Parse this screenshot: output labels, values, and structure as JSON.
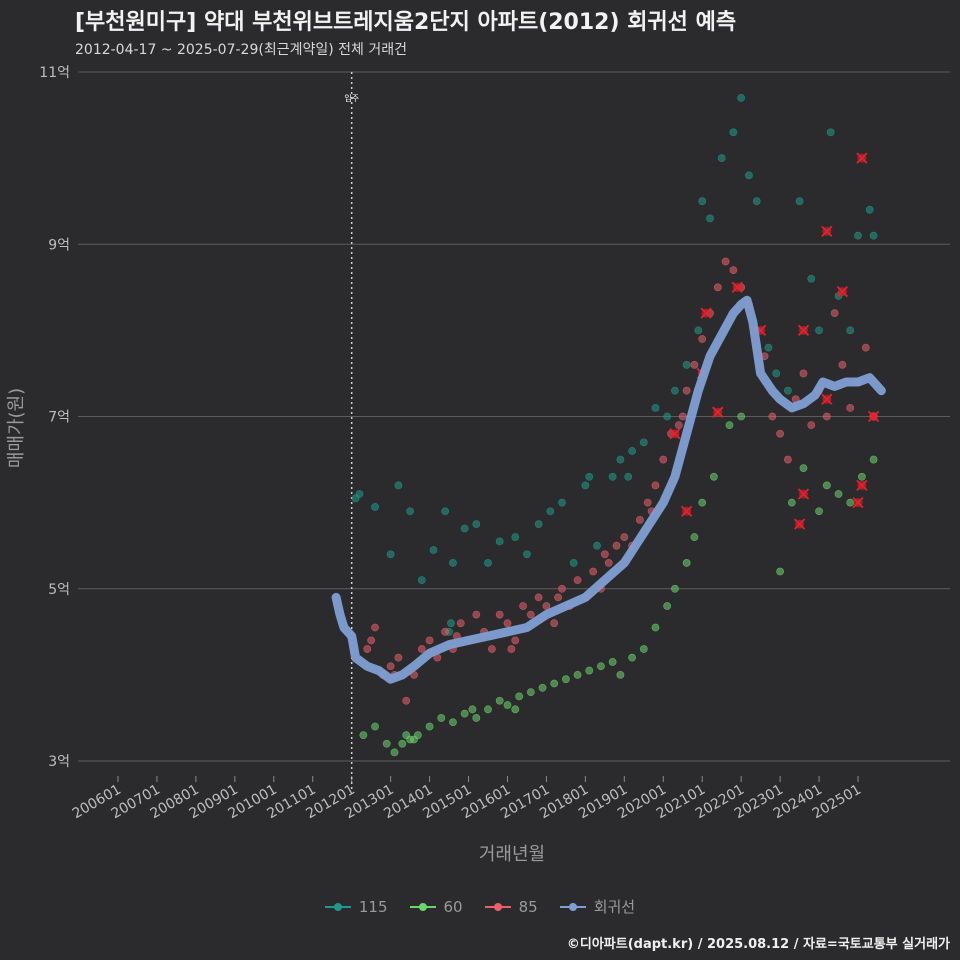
{
  "header": {
    "title": "[부천원미구] 약대 부천위브트레지움2단지 아파트(2012) 회귀선 예측",
    "subtitle": "2012-04-17 ~ 2025-07-29(최근계약일) 전체 거래건"
  },
  "caption": "©디아파트(dapt.kr) / 2025.08.12 / 자료=국토교통부 실거래가",
  "colors": {
    "background": "#2b2b2d",
    "grid": "#5c5c5c",
    "s115": "#1f9a8a",
    "s60": "#6bd46b",
    "s85": "#e8606a",
    "regression": "#7f9fd4",
    "highlight": "#e8202a"
  },
  "chart_data": {
    "type": "scatter",
    "title": "[부천원미구] 약대 부천위브트레지움2단지 아파트(2012) 회귀선 예측",
    "xlabel": "거래년월",
    "ylabel": "매매가(원)",
    "xlim": [
      2005.6,
      2026.2
    ],
    "ylim": [
      2.7,
      11.0
    ],
    "x_ticks": [
      2006,
      2007,
      2008,
      2009,
      2010,
      2011,
      2012,
      2013,
      2014,
      2015,
      2016,
      2017,
      2018,
      2019,
      2020,
      2021,
      2022,
      2023,
      2024,
      2025
    ],
    "x_tick_labels": [
      "200601",
      "200701",
      "200801",
      "200901",
      "201001",
      "201101",
      "201201",
      "201301",
      "201401",
      "201501",
      "201601",
      "201701",
      "201801",
      "201901",
      "202001",
      "202101",
      "202201",
      "202301",
      "202401",
      "202501"
    ],
    "y_ticks": [
      3,
      5,
      7,
      9,
      11
    ],
    "y_tick_labels": [
      "3억",
      "5억",
      "7억",
      "9억",
      "11억"
    ],
    "annotation": {
      "x": 2012.0,
      "label": "입주"
    },
    "legend": [
      {
        "key": "s115",
        "label": "115"
      },
      {
        "key": "s60",
        "label": "60"
      },
      {
        "key": "s85",
        "label": "85"
      },
      {
        "key": "regression",
        "label": "회귀선"
      }
    ],
    "series": [
      {
        "name": "115",
        "key": "s115",
        "points": [
          [
            2012.1,
            6.05
          ],
          [
            2012.2,
            6.1
          ],
          [
            2012.6,
            5.95
          ],
          [
            2013.0,
            5.4
          ],
          [
            2013.2,
            6.2
          ],
          [
            2013.5,
            5.9
          ],
          [
            2013.8,
            5.1
          ],
          [
            2014.1,
            5.45
          ],
          [
            2014.4,
            5.9
          ],
          [
            2014.6,
            5.3
          ],
          [
            2014.9,
            5.7
          ],
          [
            2015.2,
            5.75
          ],
          [
            2015.5,
            5.3
          ],
          [
            2015.8,
            5.55
          ],
          [
            2016.2,
            5.6
          ],
          [
            2016.5,
            5.4
          ],
          [
            2016.8,
            5.75
          ],
          [
            2017.1,
            5.9
          ],
          [
            2017.4,
            6.0
          ],
          [
            2017.7,
            5.3
          ],
          [
            2018.0,
            6.2
          ],
          [
            2018.3,
            5.5
          ],
          [
            2018.7,
            6.3
          ],
          [
            2018.9,
            6.5
          ],
          [
            2019.2,
            6.6
          ],
          [
            2019.5,
            6.7
          ],
          [
            2019.8,
            7.1
          ],
          [
            2020.1,
            7.0
          ],
          [
            2020.3,
            7.3
          ],
          [
            2020.6,
            7.6
          ],
          [
            2020.9,
            8.0
          ],
          [
            2021.0,
            9.5
          ],
          [
            2021.2,
            9.3
          ],
          [
            2021.5,
            10.0
          ],
          [
            2021.8,
            10.3
          ],
          [
            2022.0,
            10.7
          ],
          [
            2022.2,
            9.8
          ],
          [
            2022.4,
            9.5
          ],
          [
            2022.7,
            7.8
          ],
          [
            2022.9,
            7.5
          ],
          [
            2023.2,
            7.3
          ],
          [
            2023.5,
            9.5
          ],
          [
            2023.8,
            8.6
          ],
          [
            2024.0,
            8.0
          ],
          [
            2024.3,
            10.3
          ],
          [
            2024.5,
            8.4
          ],
          [
            2024.8,
            8.0
          ],
          [
            2025.0,
            9.1
          ],
          [
            2025.3,
            9.4
          ],
          [
            2025.4,
            9.1
          ],
          [
            2014.5,
            4.5
          ],
          [
            2014.55,
            4.6
          ],
          [
            2018.1,
            6.3
          ],
          [
            2019.1,
            6.3
          ]
        ]
      },
      {
        "name": "60",
        "key": "s60",
        "points": [
          [
            2012.3,
            3.3
          ],
          [
            2012.6,
            3.4
          ],
          [
            2012.9,
            3.2
          ],
          [
            2013.1,
            3.1
          ],
          [
            2013.3,
            3.2
          ],
          [
            2013.5,
            3.25
          ],
          [
            2013.7,
            3.3
          ],
          [
            2014.0,
            3.4
          ],
          [
            2014.3,
            3.5
          ],
          [
            2014.6,
            3.45
          ],
          [
            2014.9,
            3.55
          ],
          [
            2015.2,
            3.5
          ],
          [
            2015.5,
            3.6
          ],
          [
            2015.8,
            3.7
          ],
          [
            2016.0,
            3.65
          ],
          [
            2016.3,
            3.75
          ],
          [
            2016.6,
            3.8
          ],
          [
            2016.9,
            3.85
          ],
          [
            2017.2,
            3.9
          ],
          [
            2017.5,
            3.95
          ],
          [
            2017.8,
            4.0
          ],
          [
            2018.1,
            4.05
          ],
          [
            2018.4,
            4.1
          ],
          [
            2018.7,
            4.15
          ],
          [
            2018.9,
            4.0
          ],
          [
            2019.2,
            4.2
          ],
          [
            2019.5,
            4.3
          ],
          [
            2019.8,
            4.55
          ],
          [
            2020.1,
            4.8
          ],
          [
            2020.3,
            5.0
          ],
          [
            2020.6,
            5.3
          ],
          [
            2020.8,
            5.6
          ],
          [
            2021.0,
            6.0
          ],
          [
            2021.3,
            6.3
          ],
          [
            2021.7,
            6.9
          ],
          [
            2022.0,
            7.0
          ],
          [
            2023.0,
            5.2
          ],
          [
            2023.3,
            6.0
          ],
          [
            2023.6,
            6.4
          ],
          [
            2024.0,
            5.9
          ],
          [
            2024.2,
            6.2
          ],
          [
            2024.5,
            6.1
          ],
          [
            2024.8,
            6.0
          ],
          [
            2025.1,
            6.3
          ],
          [
            2025.4,
            6.5
          ],
          [
            2013.4,
            3.3
          ],
          [
            2013.6,
            3.25
          ],
          [
            2015.1,
            3.6
          ],
          [
            2016.2,
            3.6
          ]
        ]
      },
      {
        "name": "85",
        "key": "s85",
        "points": [
          [
            2012.4,
            4.3
          ],
          [
            2012.6,
            4.55
          ],
          [
            2012.8,
            4.0
          ],
          [
            2013.0,
            4.1
          ],
          [
            2013.2,
            4.2
          ],
          [
            2013.4,
            3.7
          ],
          [
            2013.6,
            4.0
          ],
          [
            2013.8,
            4.3
          ],
          [
            2014.0,
            4.4
          ],
          [
            2014.2,
            4.2
          ],
          [
            2014.4,
            4.5
          ],
          [
            2014.6,
            4.3
          ],
          [
            2014.8,
            4.6
          ],
          [
            2015.0,
            4.4
          ],
          [
            2015.2,
            4.7
          ],
          [
            2015.4,
            4.5
          ],
          [
            2015.6,
            4.3
          ],
          [
            2015.8,
            4.7
          ],
          [
            2016.0,
            4.6
          ],
          [
            2016.2,
            4.4
          ],
          [
            2016.4,
            4.8
          ],
          [
            2016.6,
            4.7
          ],
          [
            2016.8,
            4.9
          ],
          [
            2017.0,
            4.8
          ],
          [
            2017.2,
            4.6
          ],
          [
            2017.4,
            5.0
          ],
          [
            2017.6,
            4.8
          ],
          [
            2017.8,
            5.1
          ],
          [
            2018.0,
            4.9
          ],
          [
            2018.2,
            5.2
          ],
          [
            2018.4,
            5.0
          ],
          [
            2018.6,
            5.3
          ],
          [
            2018.8,
            5.5
          ],
          [
            2019.0,
            5.6
          ],
          [
            2019.2,
            5.5
          ],
          [
            2019.4,
            5.8
          ],
          [
            2019.6,
            6.0
          ],
          [
            2019.8,
            6.2
          ],
          [
            2020.0,
            6.5
          ],
          [
            2020.2,
            6.8
          ],
          [
            2020.4,
            6.9
          ],
          [
            2020.6,
            7.3
          ],
          [
            2020.8,
            7.6
          ],
          [
            2021.0,
            7.9
          ],
          [
            2021.2,
            8.2
          ],
          [
            2021.4,
            8.5
          ],
          [
            2021.6,
            8.8
          ],
          [
            2021.8,
            8.7
          ],
          [
            2022.0,
            8.5
          ],
          [
            2022.2,
            8.3
          ],
          [
            2022.4,
            8.0
          ],
          [
            2022.6,
            7.7
          ],
          [
            2022.8,
            7.0
          ],
          [
            2023.0,
            6.8
          ],
          [
            2023.2,
            6.5
          ],
          [
            2023.4,
            7.2
          ],
          [
            2023.6,
            7.5
          ],
          [
            2023.8,
            6.9
          ],
          [
            2024.0,
            7.3
          ],
          [
            2024.2,
            7.0
          ],
          [
            2024.4,
            8.2
          ],
          [
            2024.6,
            7.6
          ],
          [
            2024.8,
            7.1
          ],
          [
            2025.0,
            7.4
          ],
          [
            2025.2,
            7.8
          ],
          [
            2025.4,
            7.0
          ],
          [
            2012.5,
            4.4
          ],
          [
            2013.1,
            4.0
          ],
          [
            2014.7,
            4.45
          ],
          [
            2016.1,
            4.3
          ],
          [
            2017.3,
            4.9
          ],
          [
            2018.5,
            5.4
          ],
          [
            2019.7,
            5.9
          ],
          [
            2020.5,
            7.0
          ]
        ]
      }
    ],
    "highlight_points": [
      [
        2021.1,
        8.2
      ],
      [
        2021.0,
        7.5
      ],
      [
        2021.4,
        7.05
      ],
      [
        2021.9,
        8.5
      ],
      [
        2022.5,
        8.0
      ],
      [
        2020.3,
        6.8
      ],
      [
        2020.6,
        5.9
      ],
      [
        2023.6,
        8.0
      ],
      [
        2023.6,
        6.1
      ],
      [
        2023.5,
        5.75
      ],
      [
        2024.2,
        9.15
      ],
      [
        2024.2,
        7.2
      ],
      [
        2024.6,
        8.45
      ],
      [
        2025.1,
        10.0
      ],
      [
        2025.0,
        6.0
      ],
      [
        2025.1,
        6.2
      ],
      [
        2025.4,
        7.0
      ]
    ],
    "regression": {
      "name": "회귀선",
      "points": [
        [
          2011.6,
          4.9
        ],
        [
          2011.7,
          4.7
        ],
        [
          2011.8,
          4.55
        ],
        [
          2012.0,
          4.45
        ],
        [
          2012.1,
          4.2
        ],
        [
          2012.4,
          4.1
        ],
        [
          2012.7,
          4.05
        ],
        [
          2013.0,
          3.95
        ],
        [
          2013.3,
          4.0
        ],
        [
          2013.6,
          4.1
        ],
        [
          2014.0,
          4.25
        ],
        [
          2014.5,
          4.35
        ],
        [
          2015.0,
          4.4
        ],
        [
          2015.5,
          4.45
        ],
        [
          2016.0,
          4.5
        ],
        [
          2016.5,
          4.55
        ],
        [
          2017.0,
          4.7
        ],
        [
          2017.5,
          4.8
        ],
        [
          2018.0,
          4.9
        ],
        [
          2018.5,
          5.1
        ],
        [
          2019.0,
          5.3
        ],
        [
          2019.5,
          5.65
        ],
        [
          2020.0,
          6.0
        ],
        [
          2020.3,
          6.3
        ],
        [
          2020.6,
          6.8
        ],
        [
          2020.9,
          7.3
        ],
        [
          2021.2,
          7.7
        ],
        [
          2021.5,
          7.95
        ],
        [
          2021.8,
          8.2
        ],
        [
          2022.0,
          8.3
        ],
        [
          2022.15,
          8.35
        ],
        [
          2022.3,
          8.1
        ],
        [
          2022.5,
          7.5
        ],
        [
          2022.8,
          7.3
        ],
        [
          2023.0,
          7.2
        ],
        [
          2023.3,
          7.1
        ],
        [
          2023.6,
          7.15
        ],
        [
          2023.9,
          7.25
        ],
        [
          2024.1,
          7.4
        ],
        [
          2024.4,
          7.35
        ],
        [
          2024.7,
          7.4
        ],
        [
          2025.0,
          7.4
        ],
        [
          2025.3,
          7.45
        ],
        [
          2025.6,
          7.3
        ]
      ]
    }
  }
}
